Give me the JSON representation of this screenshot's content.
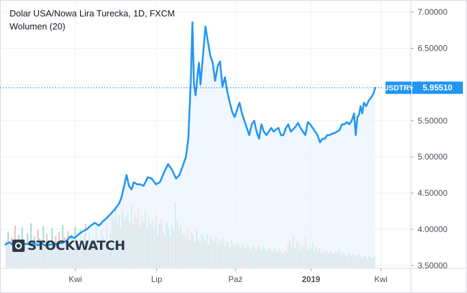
{
  "chart_data": {
    "type": "line",
    "title": "Dolar USA/Nowa Lira Turecka, 1D, FXCM",
    "subtitle": "Wolumen (20)",
    "symbol": "USDTRY",
    "last_value": 5.9551,
    "last_value_label": "5.95510",
    "watermark": "STOCKWATCH",
    "yticks": [
      "3.50000",
      "4.00000",
      "4.50000",
      "5.00000",
      "5.50000",
      "6.00000",
      "6.50000",
      "7.00000"
    ],
    "ylim": [
      3.46,
      7.12
    ],
    "xticks": [
      "Kwi",
      "Lip",
      "Paź",
      "2019",
      "Kwi"
    ],
    "x_range_days": [
      0,
      455
    ],
    "xtick_days": [
      86,
      186,
      283,
      376,
      462
    ],
    "series": [
      {
        "values": [
          [
            0,
            3.79
          ],
          [
            5,
            3.82
          ],
          [
            10,
            3.77
          ],
          [
            15,
            3.8
          ],
          [
            20,
            3.78
          ],
          [
            25,
            3.8
          ],
          [
            30,
            3.79
          ],
          [
            35,
            3.81
          ],
          [
            40,
            3.78
          ],
          [
            45,
            3.8
          ],
          [
            50,
            3.77
          ],
          [
            55,
            3.79
          ],
          [
            60,
            3.79
          ],
          [
            65,
            3.8
          ],
          [
            70,
            3.81
          ],
          [
            75,
            3.84
          ],
          [
            80,
            3.9
          ],
          [
            85,
            3.88
          ],
          [
            90,
            3.93
          ],
          [
            95,
            3.97
          ],
          [
            100,
            4.0
          ],
          [
            105,
            4.05
          ],
          [
            110,
            4.09
          ],
          [
            115,
            4.05
          ],
          [
            120,
            4.11
          ],
          [
            125,
            4.16
          ],
          [
            130,
            4.22
          ],
          [
            135,
            4.28
          ],
          [
            140,
            4.36
          ],
          [
            143,
            4.45
          ],
          [
            146,
            4.6
          ],
          [
            149,
            4.75
          ],
          [
            152,
            4.6
          ],
          [
            155,
            4.55
          ],
          [
            158,
            4.65
          ],
          [
            162,
            4.62
          ],
          [
            166,
            4.62
          ],
          [
            170,
            4.6
          ],
          [
            175,
            4.72
          ],
          [
            180,
            4.7
          ],
          [
            185,
            4.62
          ],
          [
            190,
            4.65
          ],
          [
            195,
            4.78
          ],
          [
            200,
            4.9
          ],
          [
            205,
            4.82
          ],
          [
            210,
            4.7
          ],
          [
            214,
            4.75
          ],
          [
            218,
            4.87
          ],
          [
            222,
            5.0
          ],
          [
            225,
            5.25
          ],
          [
            228,
            6.05
          ],
          [
            230,
            6.86
          ],
          [
            232,
            6.0
          ],
          [
            234,
            5.85
          ],
          [
            236,
            6.1
          ],
          [
            238,
            6.3
          ],
          [
            240,
            6.0
          ],
          [
            243,
            6.4
          ],
          [
            246,
            6.8
          ],
          [
            249,
            6.6
          ],
          [
            252,
            6.4
          ],
          [
            255,
            6.3
          ],
          [
            258,
            6.05
          ],
          [
            261,
            6.25
          ],
          [
            264,
            6.32
          ],
          [
            267,
            5.97
          ],
          [
            270,
            6.1
          ],
          [
            273,
            5.9
          ],
          [
            276,
            5.75
          ],
          [
            279,
            5.62
          ],
          [
            282,
            5.55
          ],
          [
            285,
            5.65
          ],
          [
            288,
            5.75
          ],
          [
            291,
            5.6
          ],
          [
            294,
            5.5
          ],
          [
            297,
            5.4
          ],
          [
            300,
            5.3
          ],
          [
            303,
            5.45
          ],
          [
            306,
            5.5
          ],
          [
            309,
            5.35
          ],
          [
            312,
            5.25
          ],
          [
            315,
            5.45
          ],
          [
            318,
            5.35
          ],
          [
            321,
            5.3
          ],
          [
            324,
            5.35
          ],
          [
            327,
            5.4
          ],
          [
            330,
            5.35
          ],
          [
            333,
            5.38
          ],
          [
            336,
            5.4
          ],
          [
            339,
            5.3
          ],
          [
            342,
            5.3
          ],
          [
            345,
            5.4
          ],
          [
            348,
            5.45
          ],
          [
            351,
            5.35
          ],
          [
            354,
            5.38
          ],
          [
            357,
            5.42
          ],
          [
            360,
            5.47
          ],
          [
            363,
            5.4
          ],
          [
            366,
            5.35
          ],
          [
            369,
            5.3
          ],
          [
            372,
            5.48
          ],
          [
            375,
            5.45
          ],
          [
            378,
            5.4
          ],
          [
            381,
            5.35
          ],
          [
            384,
            5.3
          ],
          [
            387,
            5.2
          ],
          [
            390,
            5.25
          ],
          [
            393,
            5.25
          ],
          [
            396,
            5.3
          ],
          [
            399,
            5.3
          ],
          [
            402,
            5.32
          ],
          [
            405,
            5.33
          ],
          [
            408,
            5.35
          ],
          [
            411,
            5.37
          ],
          [
            414,
            5.45
          ],
          [
            417,
            5.45
          ],
          [
            420,
            5.48
          ],
          [
            423,
            5.45
          ],
          [
            426,
            5.5
          ],
          [
            429,
            5.6
          ],
          [
            431,
            5.3
          ],
          [
            433,
            5.55
          ],
          [
            435,
            5.58
          ],
          [
            437,
            5.7
          ],
          [
            439,
            5.6
          ],
          [
            441,
            5.75
          ],
          [
            444,
            5.7
          ],
          [
            447,
            5.78
          ],
          [
            450,
            5.82
          ],
          [
            453,
            5.88
          ],
          [
            455,
            5.9551
          ]
        ]
      }
    ],
    "volume": {
      "name": "Wolumen",
      "period": 20,
      "vmax": 100,
      "values": [
        38,
        52,
        30,
        44,
        25,
        61,
        33,
        47,
        22,
        58,
        41,
        35,
        50,
        28,
        64,
        39,
        45,
        31,
        55,
        42,
        36,
        60,
        27,
        49,
        40,
        34,
        57,
        29,
        46,
        38,
        52,
        33,
        62,
        44,
        26,
        53,
        37,
        48,
        30,
        59,
        41,
        35,
        55,
        28,
        47,
        63,
        32,
        50,
        39,
        44,
        36,
        58,
        42,
        30,
        54,
        45,
        38,
        61,
        33,
        49,
        82,
        70,
        88,
        64,
        76,
        58,
        84,
        69,
        73,
        80,
        66,
        90,
        62,
        78,
        71,
        85,
        60,
        74,
        67,
        81,
        57,
        72,
        63,
        69,
        55,
        76,
        48,
        64,
        70,
        52,
        46,
        66,
        58,
        45,
        60,
        53,
        95,
        68,
        57,
        62,
        50,
        49,
        44,
        56,
        40,
        52,
        47,
        38,
        54,
        42,
        36,
        50,
        45,
        39,
        48,
        34,
        46,
        41,
        37,
        44,
        33,
        40,
        35,
        42,
        31,
        38,
        36,
        29,
        41,
        34,
        30,
        37,
        33,
        28,
        35,
        31,
        27,
        34,
        30,
        26,
        32,
        29,
        25,
        31,
        28,
        24,
        30,
        27,
        23,
        29,
        26,
        22,
        28,
        25,
        21,
        27,
        24,
        20,
        26,
        23,
        34,
        40,
        30,
        45,
        28,
        38,
        35,
        26,
        32,
        29,
        44,
        25,
        31,
        27,
        36,
        22,
        30,
        24,
        28,
        21,
        26,
        23,
        25,
        20,
        24,
        22,
        19,
        23,
        21,
        27,
        18,
        22,
        20,
        17,
        21,
        19,
        16,
        20,
        18,
        15,
        19,
        17,
        14,
        18,
        16,
        13,
        17,
        15,
        14,
        16
      ]
    },
    "colors": {
      "line": "#2196f3",
      "fill": "#eaf3fd",
      "volume_up": "#7ecfc4",
      "volume_down": "#f2a0a0",
      "last_value_bg": "#2196f3",
      "grid": "#eef0f3"
    }
  }
}
